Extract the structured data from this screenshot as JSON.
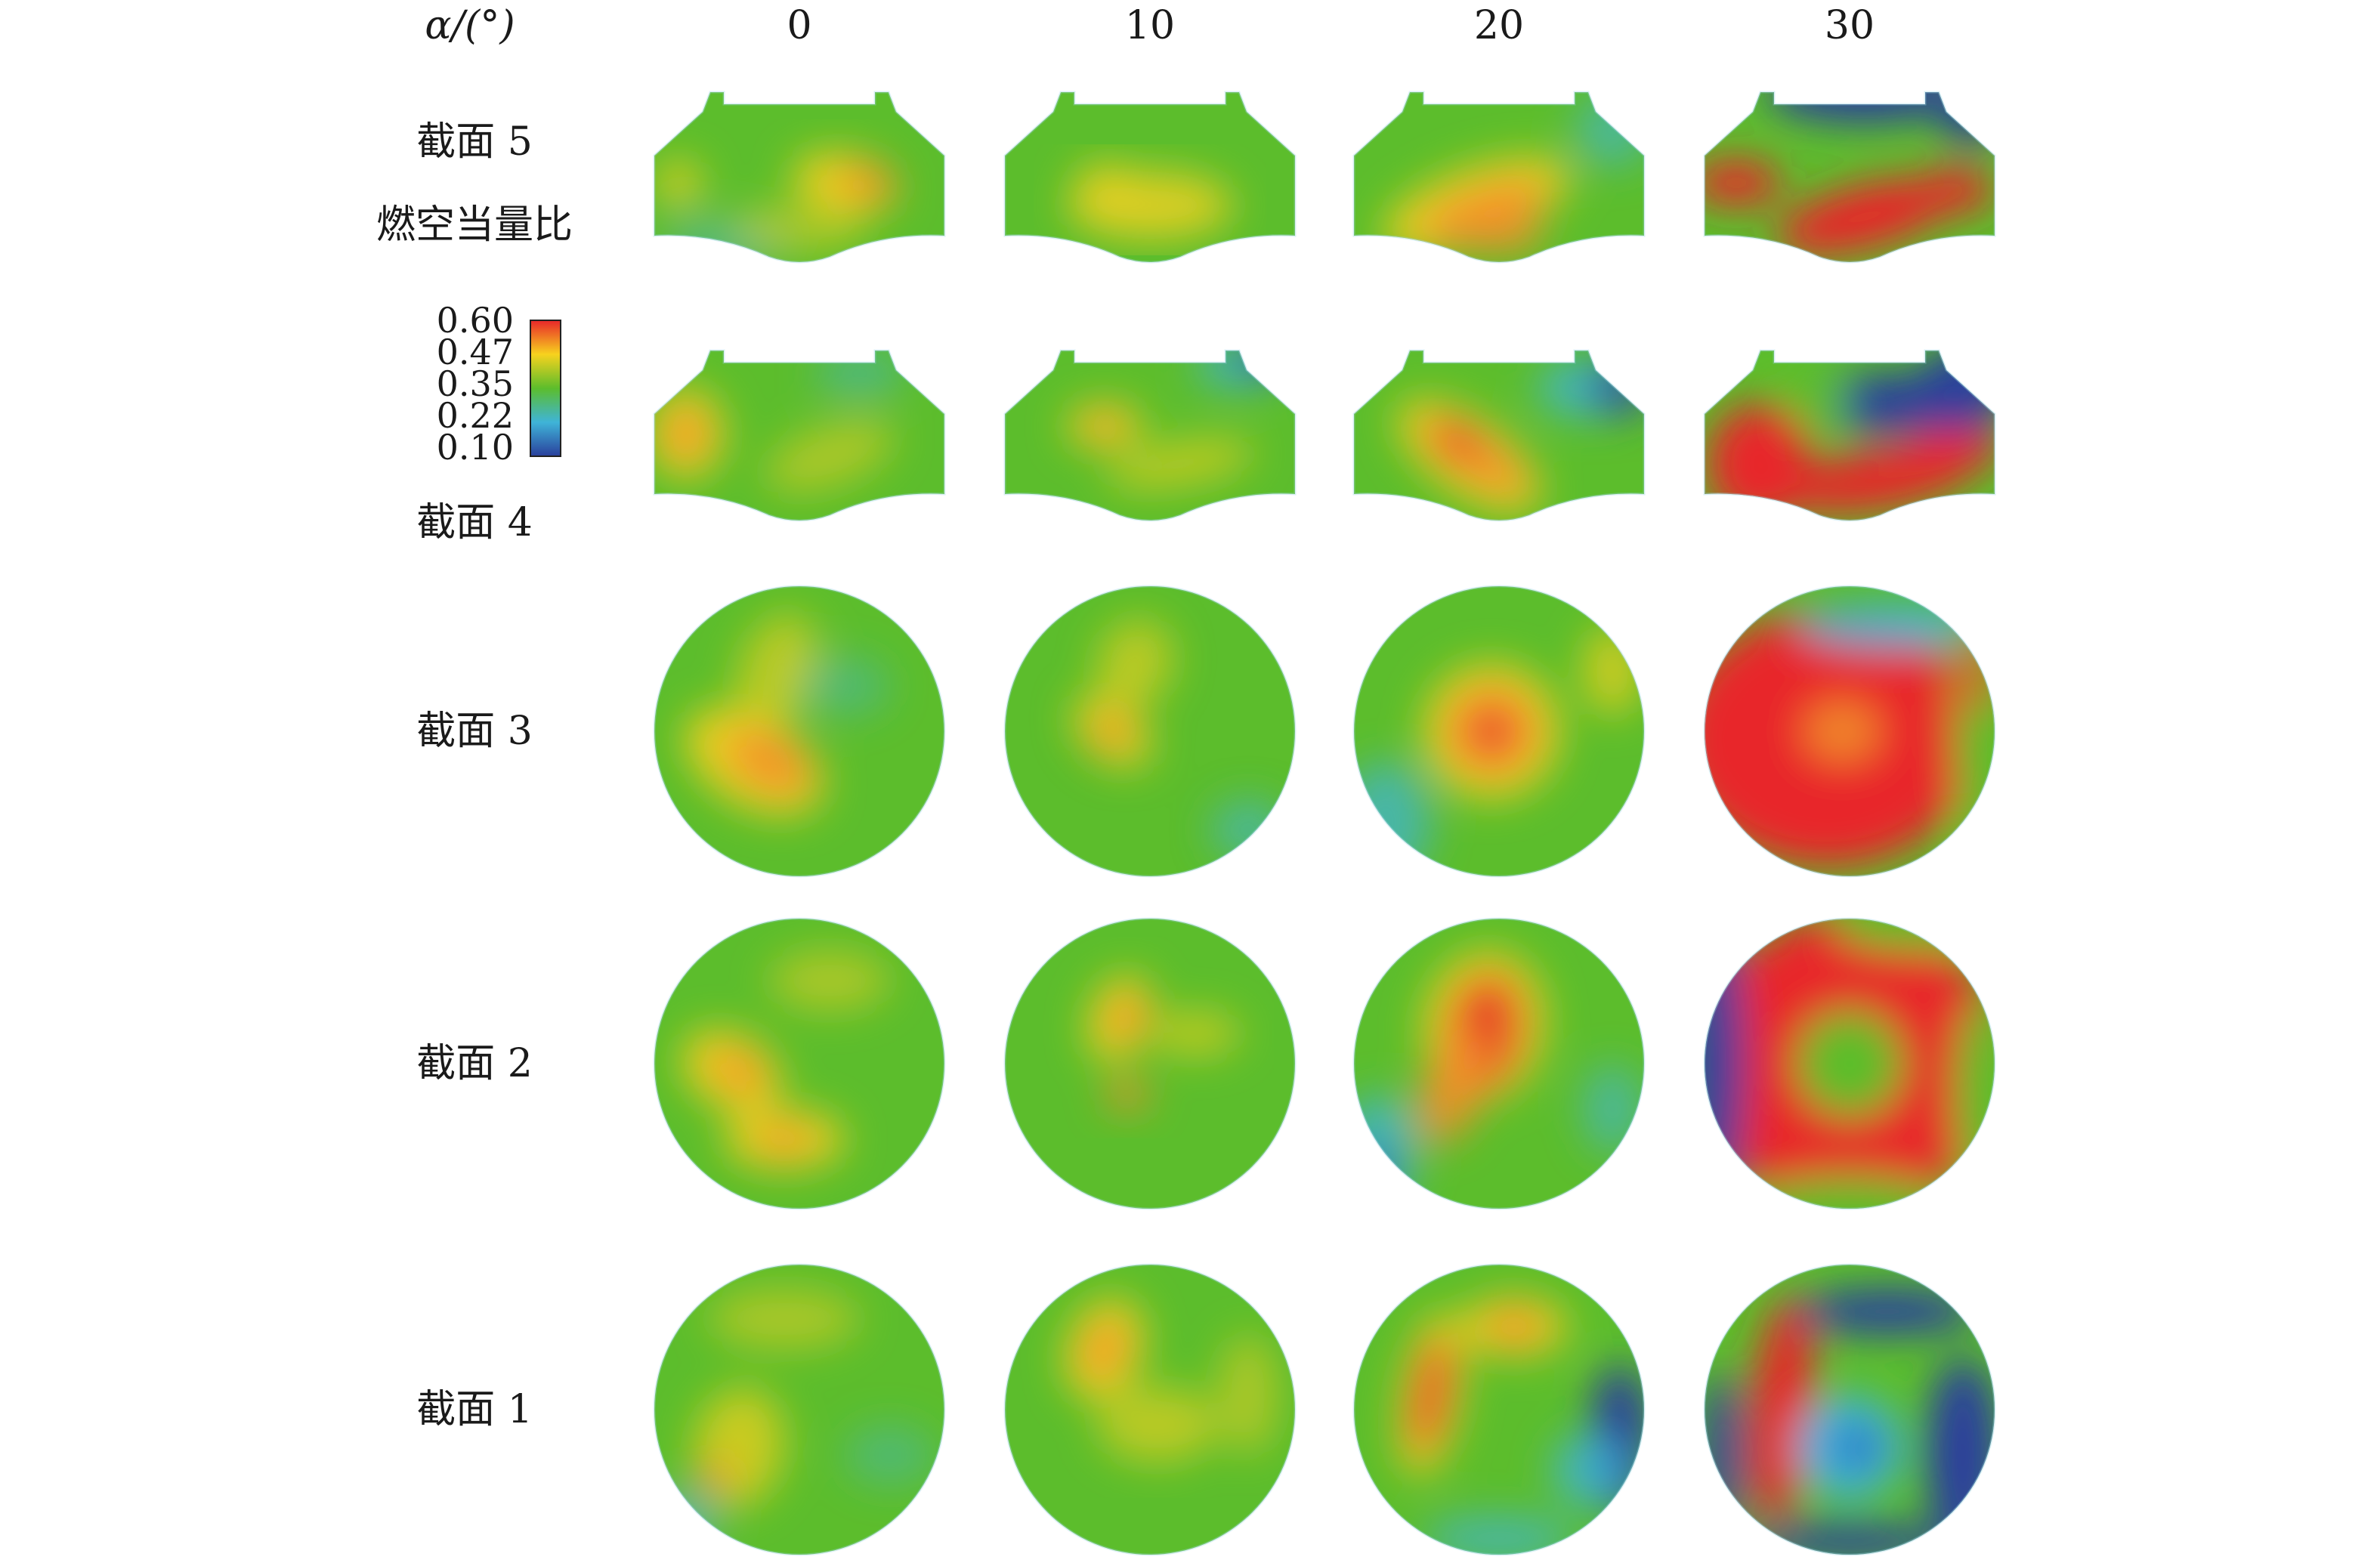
{
  "header": {
    "angle_label": "α/(°)",
    "angles": [
      "0",
      "10",
      "20",
      "30"
    ]
  },
  "sections": [
    {
      "label": "截面 5",
      "shape": "nozzle"
    },
    {
      "label": "截面 4",
      "shape": "nozzle"
    },
    {
      "label": "截面 3",
      "shape": "circle"
    },
    {
      "label": "截面 2",
      "shape": "circle"
    },
    {
      "label": "截面 1",
      "shape": "circle"
    }
  ],
  "legend": {
    "title": "燃空当量比",
    "ticks": [
      "0.60",
      "0.47",
      "0.35",
      "0.22",
      "0.10"
    ],
    "min": 0.1,
    "max": 0.6,
    "colors": [
      "#e8262a",
      "#f7d21e",
      "#5cbd2c",
      "#3fb4d8",
      "#2a3f9c"
    ]
  }
}
